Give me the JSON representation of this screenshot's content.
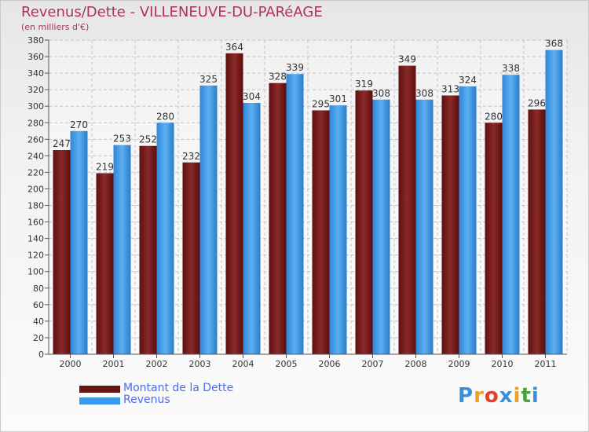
{
  "chart_data": {
    "type": "bar",
    "title": "Revenus/Dette - VILLENEUVE-DU-PARéAGE",
    "subtitle": "(en milliers d'€)",
    "xlabel": "",
    "ylabel": "",
    "ylim": [
      0,
      380
    ],
    "yticks": [
      0,
      20,
      40,
      60,
      80,
      100,
      120,
      140,
      160,
      180,
      200,
      220,
      240,
      260,
      280,
      300,
      320,
      340,
      360,
      380
    ],
    "grid": true,
    "legend_position": "bottom-left",
    "categories": [
      "2000",
      "2001",
      "2002",
      "2003",
      "2004",
      "2005",
      "2006",
      "2007",
      "2008",
      "2009",
      "2010",
      "2011"
    ],
    "series": [
      {
        "name": "Montant de la Dette",
        "color": "#7a1f1f",
        "values": [
          247,
          219,
          252,
          232,
          364,
          328,
          295,
          319,
          349,
          313,
          280,
          296
        ]
      },
      {
        "name": "Revenus",
        "color": "#3a9ae8",
        "values": [
          270,
          253,
          280,
          325,
          304,
          339,
          301,
          308,
          308,
          324,
          338,
          368
        ]
      }
    ]
  },
  "logo": {
    "letters": [
      "P",
      "r",
      "o",
      "x",
      "i",
      "t",
      "i"
    ],
    "colors": [
      "#3a8fd8",
      "#f0a020",
      "#e0402a",
      "#3a8fd8",
      "#f0a020",
      "#4aa040",
      "#3a8fd8"
    ]
  }
}
